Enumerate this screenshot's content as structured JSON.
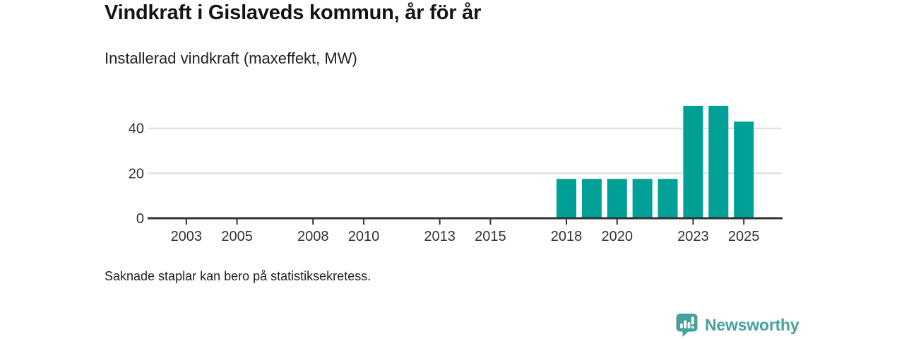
{
  "header": {
    "title": "Vindkraft i Gislaveds kommun, år för år",
    "subtitle": "Installerad vindkraft (maxeffekt, MW)"
  },
  "footer": {
    "note": "Saknade staplar kan bero på statistiksekretess.",
    "brand": "Newsworthy"
  },
  "colors": {
    "bar": "#00a096",
    "grid": "#dcdcdc",
    "axis": "#333333",
    "tick_label": "#333333",
    "logo": "#46a19b"
  },
  "chart_data": {
    "type": "bar",
    "title": "Vindkraft i Gislaveds kommun, år för år",
    "subtitle": "Installerad vindkraft (maxeffekt, MW)",
    "xlabel": "",
    "ylabel": "Installerad vindkraft (maxeffekt, MW)",
    "x": [
      2018,
      2019,
      2020,
      2021,
      2022,
      2023,
      2024,
      2025
    ],
    "values": [
      17.5,
      17.5,
      17.5,
      17.5,
      17.5,
      50,
      50,
      43
    ],
    "x_ticks": [
      2003,
      2005,
      2008,
      2010,
      2013,
      2015,
      2018,
      2020,
      2023,
      2025
    ],
    "y_ticks": [
      0,
      20,
      40
    ],
    "xlim": [
      2001.5,
      2026.5
    ],
    "ylim": [
      0,
      55
    ],
    "grid": "horizontal",
    "legend": "none",
    "bar_color": "#00a096",
    "note": "Saknade staplar kan bero på statistiksekretess."
  }
}
